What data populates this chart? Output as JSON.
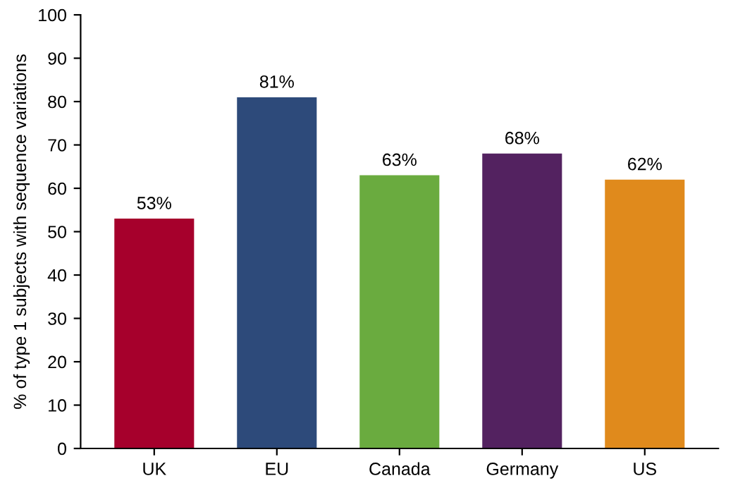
{
  "chart_data": {
    "type": "bar",
    "ylabel": "% of type 1 subjects with sequence variations",
    "categories": [
      "UK",
      "EU",
      "Canada",
      "Germany",
      "US"
    ],
    "values": [
      53,
      81,
      63,
      68,
      62
    ],
    "colors": [
      "#a6002c",
      "#2d4a7a",
      "#6aab3f",
      "#532260",
      "#e08a1c"
    ],
    "value_labels": [
      "53%",
      "81%",
      "63%",
      "68%",
      "62%"
    ],
    "ylim": [
      0,
      100
    ],
    "yticks": [
      0,
      10,
      20,
      30,
      40,
      50,
      60,
      70,
      80,
      90,
      100
    ],
    "grid": false,
    "legend": false
  }
}
